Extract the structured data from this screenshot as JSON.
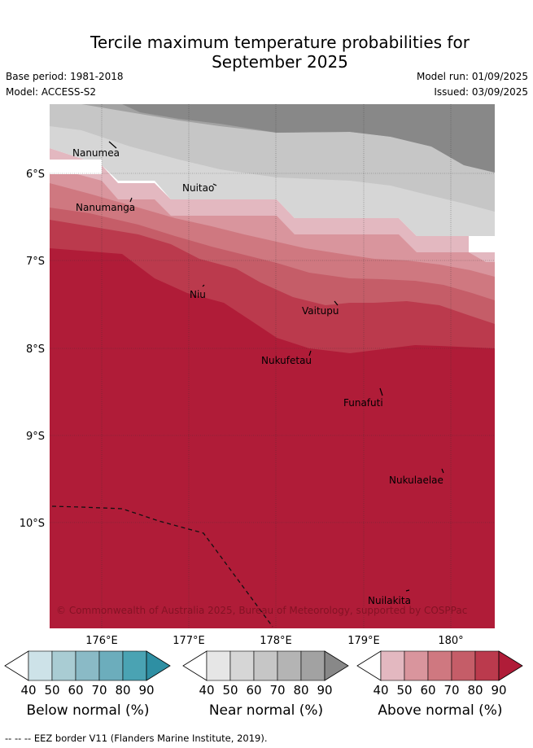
{
  "title_line1": "Tercile maximum temperature probabilities for",
  "title_line2": "September 2025",
  "base_period": "Base period: 1981-2018",
  "model": "Model: ACCESS-S2",
  "model_run": "Model run: 01/09/2025",
  "issued": "Issued: 03/09/2025",
  "lat_labels": [
    "6°S",
    "7°S",
    "8°S",
    "9°S",
    "10°S"
  ],
  "lon_labels": [
    "176°E",
    "177°E",
    "178°E",
    "179°E",
    "180°"
  ],
  "places": [
    {
      "name": "Nanumea"
    },
    {
      "name": "Nuitao"
    },
    {
      "name": "Nanumanga"
    },
    {
      "name": "Niu"
    },
    {
      "name": "Vaitupu"
    },
    {
      "name": "Nukufetau"
    },
    {
      "name": "Funafuti"
    },
    {
      "name": "Nukulaelae"
    },
    {
      "name": "Nuilakita"
    }
  ],
  "copyright": "© Commonwealth of Australia 2025, Bureau of Meteorology, supported by COSPPac",
  "colorbars": [
    {
      "label": "Below normal (%)",
      "ticks": [
        "40",
        "50",
        "60",
        "70",
        "80",
        "90"
      ],
      "colors": [
        "#cde2e8",
        "#a9ccd3",
        "#8abac6",
        "#6cadbc",
        "#4aa3b3",
        "#2e8fa3"
      ]
    },
    {
      "label": "Near normal (%)",
      "ticks": [
        "40",
        "50",
        "60",
        "70",
        "80",
        "90"
      ],
      "colors": [
        "#e6e6e6",
        "#d6d6d6",
        "#c6c6c6",
        "#b4b4b4",
        "#a2a2a2",
        "#888888"
      ]
    },
    {
      "label": "Above normal (%)",
      "ticks": [
        "40",
        "50",
        "60",
        "70",
        "80",
        "90"
      ],
      "colors": [
        "#e3b8c0",
        "#d9959d",
        "#cf7880",
        "#c55d68",
        "#bb3a4d",
        "#b01c38"
      ]
    }
  ],
  "footer": "--  --  -- EEZ border V11 (Flanders Marine Institute, 2019)."
}
